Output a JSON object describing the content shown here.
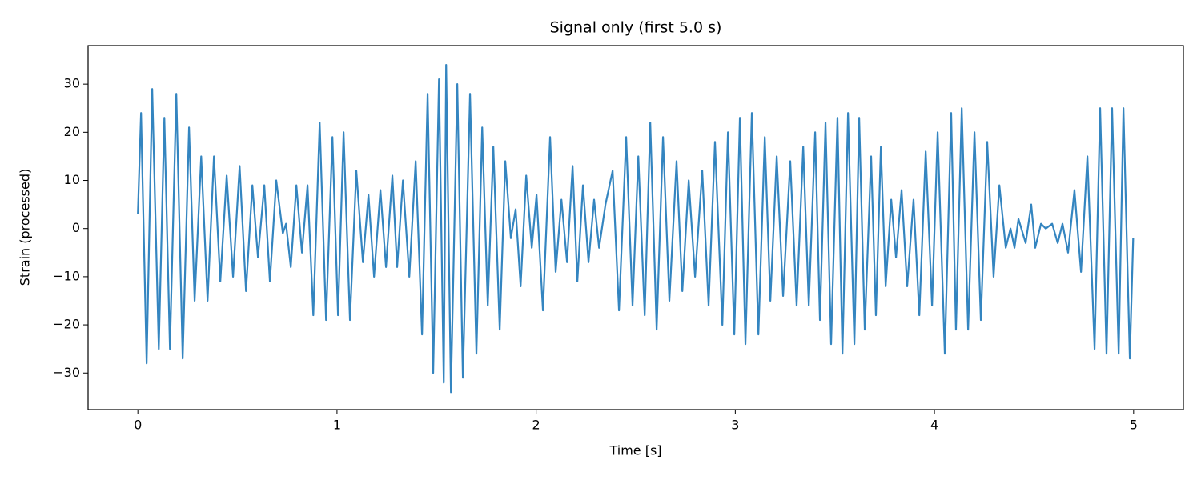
{
  "chart_data": {
    "type": "line",
    "title": "Signal only (first 5.0 s)",
    "x_label": "Time [s]",
    "y_label": "Strain (processed)",
    "x": [
      0,
      0.016,
      0.044,
      0.072,
      0.105,
      0.133,
      0.161,
      0.193,
      0.225,
      0.257,
      0.285,
      0.318,
      0.35,
      0.382,
      0.414,
      0.446,
      0.478,
      0.511,
      0.543,
      0.575,
      0.603,
      0.635,
      0.663,
      0.695,
      0.728,
      0.744,
      0.768,
      0.796,
      0.824,
      0.852,
      0.881,
      0.913,
      0.945,
      0.977,
      1.005,
      1.033,
      1.065,
      1.097,
      1.13,
      1.158,
      1.186,
      1.218,
      1.246,
      1.278,
      1.302,
      1.331,
      1.363,
      1.395,
      1.427,
      1.455,
      1.483,
      1.512,
      1.536,
      1.548,
      1.572,
      1.604,
      1.632,
      1.668,
      1.7,
      1.729,
      1.757,
      1.785,
      1.817,
      1.845,
      1.873,
      1.897,
      1.922,
      1.95,
      1.978,
      2.002,
      2.034,
      2.07,
      2.098,
      2.127,
      2.155,
      2.183,
      2.207,
      2.235,
      2.263,
      2.291,
      2.316,
      2.348,
      2.384,
      2.416,
      2.452,
      2.484,
      2.513,
      2.545,
      2.573,
      2.605,
      2.637,
      2.669,
      2.705,
      2.734,
      2.766,
      2.798,
      2.834,
      2.866,
      2.898,
      2.935,
      2.963,
      2.995,
      3.023,
      3.051,
      3.083,
      3.116,
      3.148,
      3.176,
      3.208,
      3.24,
      3.276,
      3.308,
      3.341,
      3.369,
      3.401,
      3.425,
      3.453,
      3.481,
      3.513,
      3.538,
      3.566,
      3.598,
      3.622,
      3.65,
      3.682,
      3.706,
      3.731,
      3.755,
      3.783,
      3.807,
      3.835,
      3.863,
      3.895,
      3.924,
      3.956,
      3.988,
      4.016,
      4.052,
      4.084,
      4.108,
      4.137,
      4.169,
      4.201,
      4.233,
      4.265,
      4.297,
      4.326,
      4.358,
      4.382,
      4.402,
      4.422,
      4.458,
      4.486,
      4.506,
      4.535,
      4.559,
      4.591,
      4.619,
      4.643,
      4.671,
      4.703,
      4.736,
      4.768,
      4.804,
      4.832,
      4.864,
      4.892,
      4.925,
      4.949,
      4.981,
      4.998
    ],
    "series": [
      {
        "color": "#3485c0",
        "values": [
          3,
          24,
          -28,
          29,
          -25,
          23,
          -25,
          28,
          -27,
          21,
          -15,
          15,
          -15,
          15,
          -11,
          11,
          -10,
          13,
          -13,
          9,
          -6,
          9,
          -11,
          10,
          -1,
          1,
          -8,
          9,
          -5,
          9,
          -18,
          22,
          -19,
          19,
          -18,
          20,
          -19,
          12,
          -7,
          7,
          -10,
          8,
          -8,
          11,
          -8,
          10,
          -10,
          14,
          -22,
          28,
          -30,
          31,
          -32,
          34,
          -34,
          30,
          -31,
          28,
          -26,
          21,
          -16,
          17,
          -21,
          14,
          -2,
          4,
          -12,
          11,
          -4,
          7,
          -17,
          19,
          -9,
          6,
          -7,
          13,
          -11,
          9,
          -7,
          6,
          -4,
          5,
          12,
          -17,
          19,
          -16,
          15,
          -18,
          22,
          -21,
          19,
          -15,
          14,
          -13,
          10,
          -10,
          12,
          -16,
          18,
          -20,
          20,
          -22,
          23,
          -24,
          24,
          -22,
          19,
          -15,
          15,
          -14,
          14,
          -16,
          17,
          -16,
          20,
          -19,
          22,
          -24,
          23,
          -26,
          24,
          -24,
          23,
          -21,
          15,
          -18,
          17,
          -12,
          6,
          -6,
          8,
          -12,
          6,
          -18,
          16,
          -16,
          20,
          -26,
          24,
          -21,
          25,
          -21,
          20,
          -19,
          18,
          -10,
          9,
          -4,
          0,
          -4,
          2,
          -3,
          5,
          -4,
          1,
          0,
          1,
          -3,
          1,
          -5,
          8,
          -9,
          15,
          -25,
          25,
          -26,
          25,
          -26,
          25,
          -27,
          -2
        ]
      }
    ],
    "xlim": [
      -0.25,
      5.25
    ],
    "ylim": [
      -37.6,
      38.0
    ],
    "xticks": [
      0,
      1,
      2,
      3,
      4,
      5
    ],
    "yticks": [
      {
        "value": -30,
        "label": "−30"
      },
      {
        "value": -20,
        "label": "−20"
      },
      {
        "value": -10,
        "label": "−10"
      },
      0,
      10,
      20,
      30
    ],
    "grid": false
  }
}
